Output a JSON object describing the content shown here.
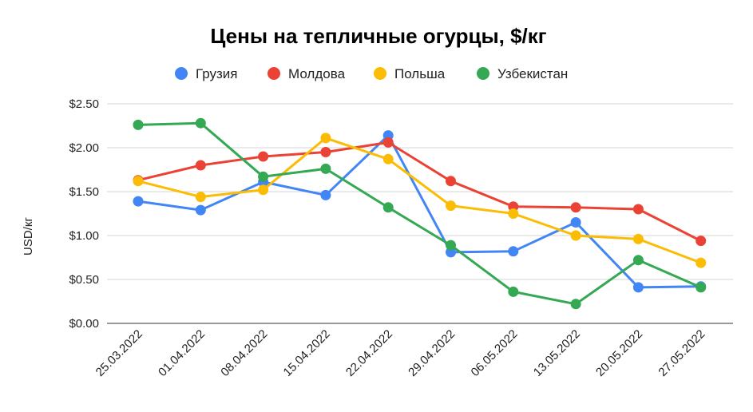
{
  "chart_data": {
    "type": "line",
    "title": "Цены на тепличные огурцы, $/кг",
    "ylabel": "USD/кг",
    "ylim": [
      0,
      2.5
    ],
    "yticks": [
      0,
      0.5,
      1.0,
      1.5,
      2.0,
      2.5
    ],
    "ytick_labels": [
      "$0.00",
      "$0.50",
      "$1.00",
      "$1.50",
      "$2.00",
      "$2.50"
    ],
    "grid": true,
    "legend": "top",
    "categories": [
      "25.03.2022",
      "01.04.2022",
      "08.04.2022",
      "15.04.2022",
      "22.04.2022",
      "29.04.2022",
      "06.05.2022",
      "13.05.2022",
      "20.05.2022",
      "27.05.2022"
    ],
    "series": [
      {
        "name": "Грузия",
        "color": "#4285F4",
        "values": [
          1.39,
          1.29,
          1.61,
          1.46,
          2.14,
          0.81,
          0.82,
          1.15,
          0.41,
          0.42
        ]
      },
      {
        "name": "Молдова",
        "color": "#EA4335",
        "values": [
          1.63,
          1.8,
          1.9,
          1.95,
          2.06,
          1.62,
          1.33,
          1.32,
          1.3,
          0.94
        ]
      },
      {
        "name": "Польша",
        "color": "#FBBC04",
        "values": [
          1.62,
          1.44,
          1.52,
          2.11,
          1.87,
          1.34,
          1.25,
          1.0,
          0.96,
          0.69
        ]
      },
      {
        "name": "Узбекистан",
        "color": "#34A853",
        "values": [
          2.26,
          2.28,
          1.67,
          1.76,
          1.32,
          0.89,
          0.36,
          0.22,
          0.72,
          0.41
        ]
      }
    ]
  }
}
